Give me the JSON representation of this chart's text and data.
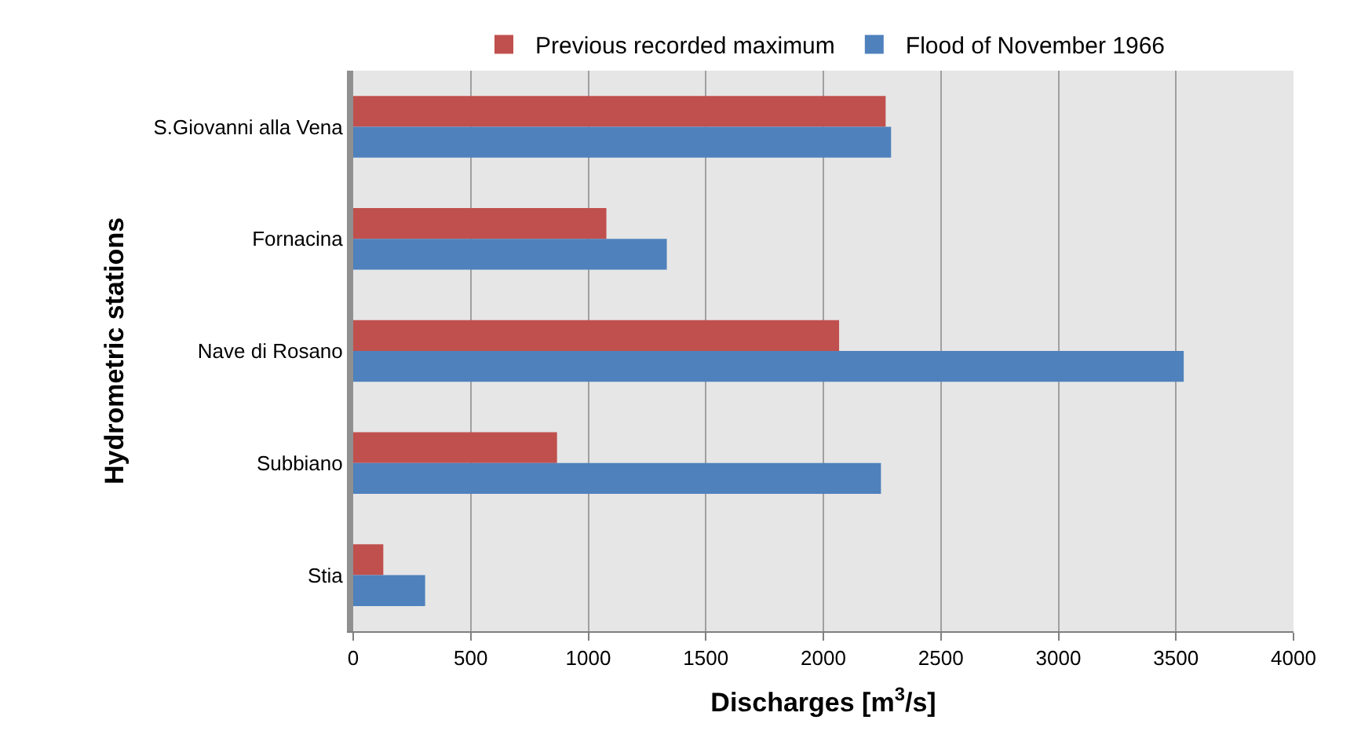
{
  "chart_data": {
    "type": "bar",
    "orientation": "horizontal",
    "categories": [
      "S.Giovanni alla Vena",
      "Fornacina",
      "Nave di Rosano",
      "Subbiano",
      "Stia"
    ],
    "series": [
      {
        "name": "Previous recorded maximum",
        "color": "#c0504d",
        "values": [
          2265,
          1077,
          2067,
          867,
          128
        ]
      },
      {
        "name": "Flood of November 1966",
        "color": "#4f81bd",
        "values": [
          2288,
          1334,
          3533,
          2245,
          306
        ]
      }
    ],
    "xlim": [
      0,
      4000
    ],
    "xticks": [
      0,
      500,
      1000,
      1500,
      2000,
      2500,
      3000,
      3500,
      4000
    ],
    "xlabel": "Discharges [m$^{3}$/s]",
    "ylabel": "Hydrometric stations",
    "grid": "x",
    "legend": "top"
  }
}
